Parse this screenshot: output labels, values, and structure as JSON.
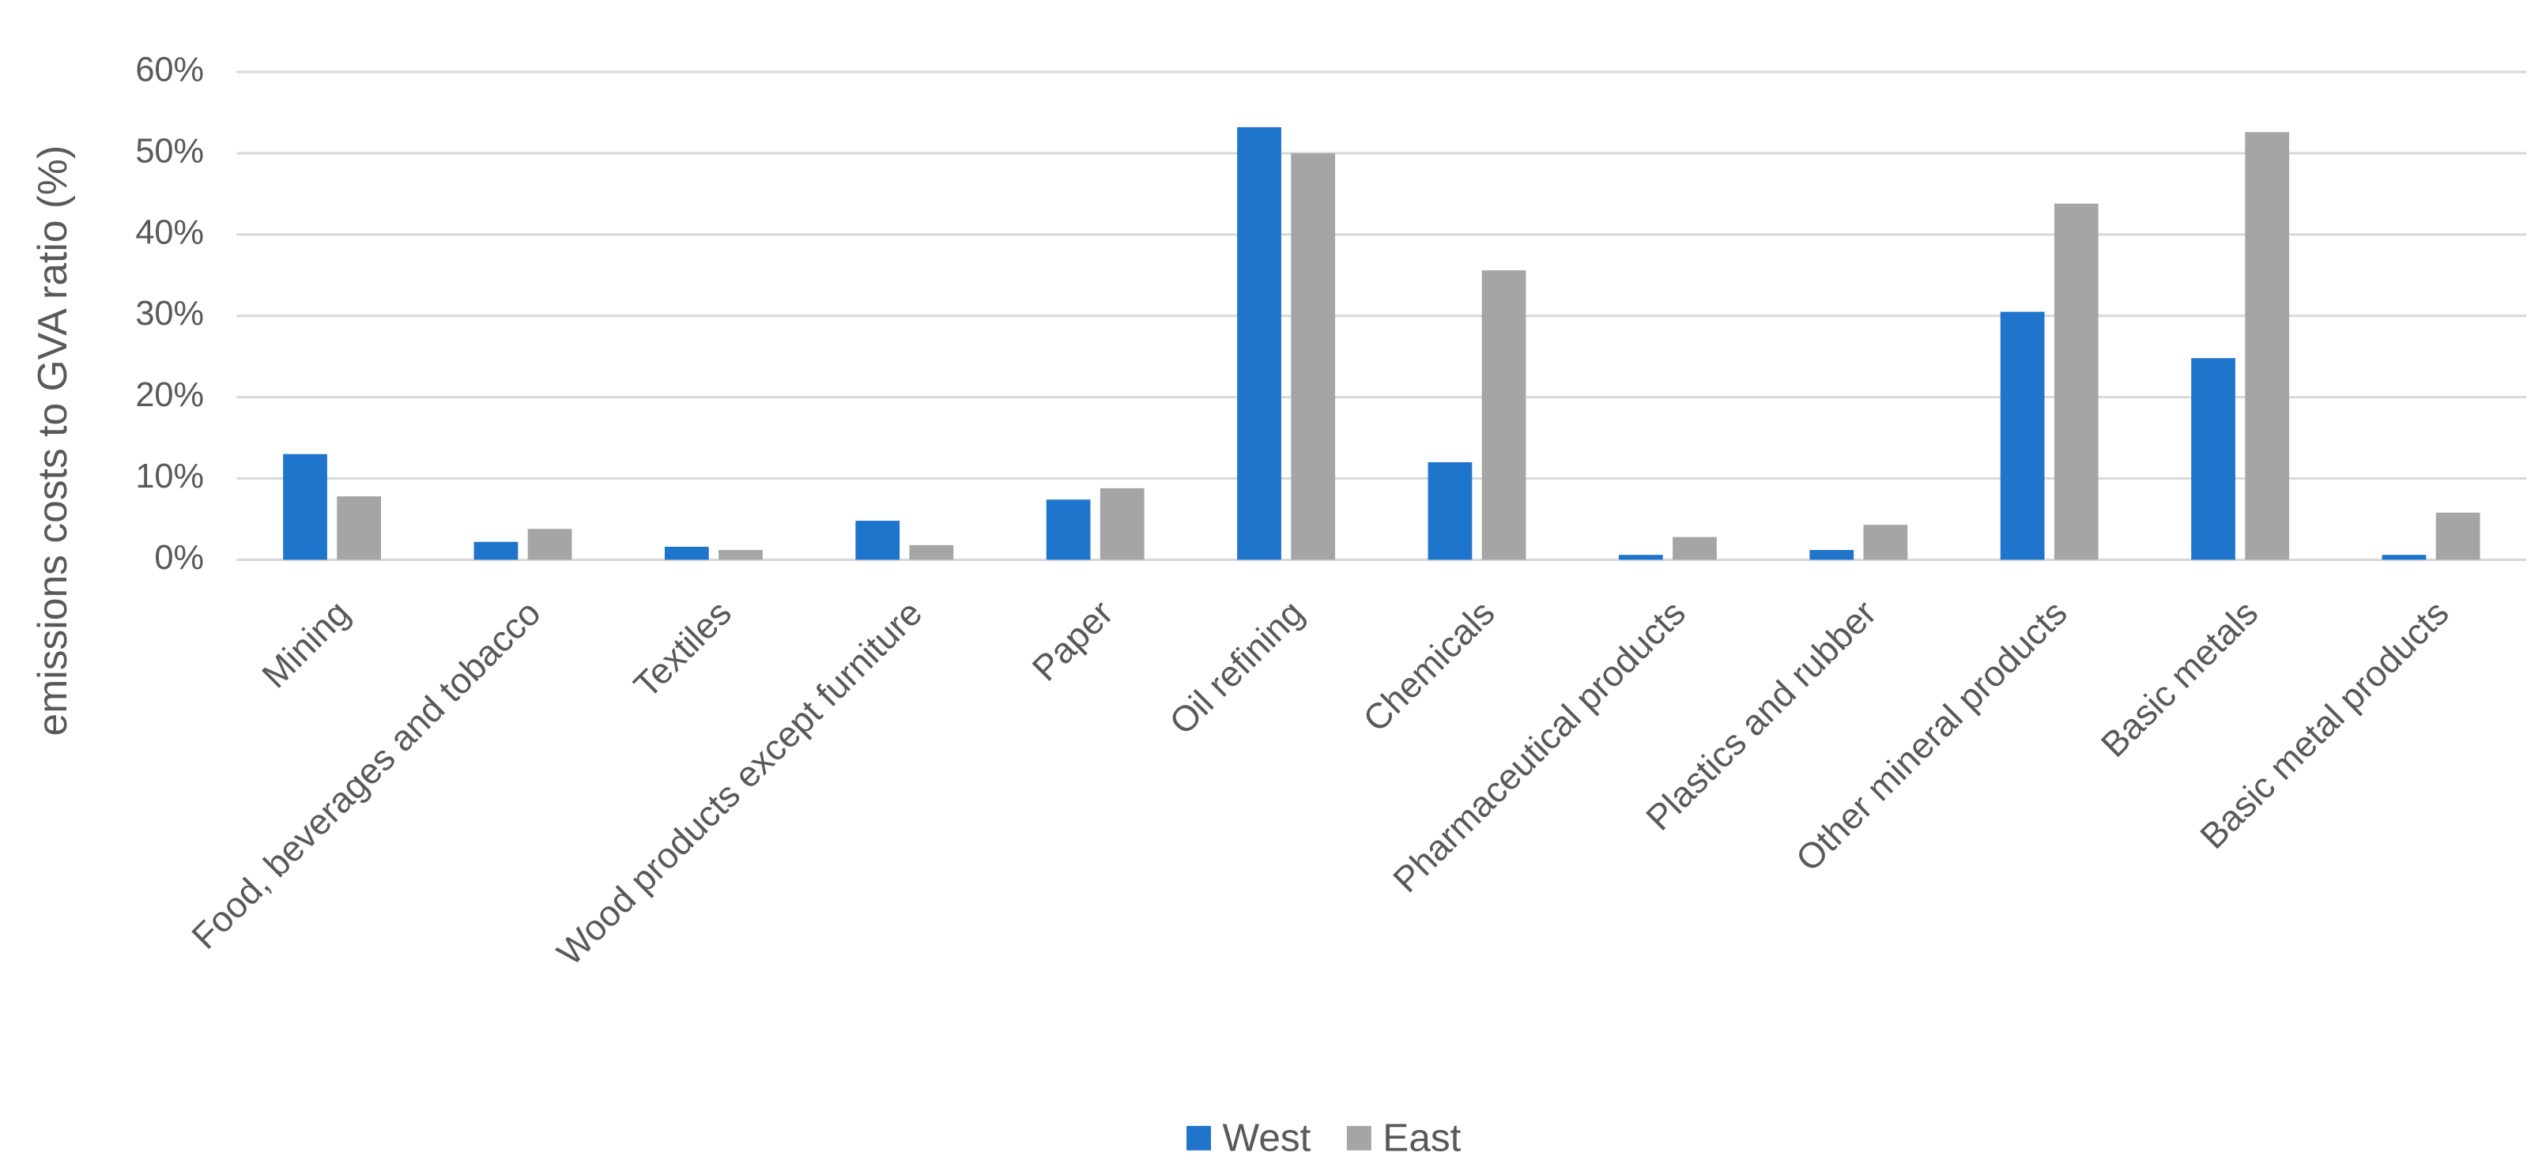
{
  "chart_data": {
    "type": "bar",
    "y_label": "emissions costs to GVA ratio (%)",
    "categories": [
      "Mining",
      "Food, beverages and tobacco",
      "Textiles",
      "Wood products except furniture",
      "Paper",
      "Oil refining",
      "Chemicals",
      "Pharmaceutical products",
      "Plastics and rubber",
      "Other mineral products",
      "Basic metals",
      "Basic metal products"
    ],
    "series": [
      {
        "name": "West",
        "color": "#1f74cc",
        "values": [
          13,
          2.2,
          1.6,
          4.8,
          7.4,
          53.2,
          12,
          0.6,
          1.2,
          30.5,
          24.8,
          0.6
        ]
      },
      {
        "name": "East",
        "color": "#a5a5a5",
        "values": [
          7.8,
          3.8,
          1.2,
          1.8,
          8.8,
          50,
          35.6,
          2.8,
          4.3,
          43.8,
          52.6,
          5.8
        ]
      }
    ],
    "ylim": [
      0,
      60
    ],
    "yticks": [
      {
        "value": 0,
        "label": "0%"
      },
      {
        "value": 10,
        "label": "10%"
      },
      {
        "value": 20,
        "label": "20%"
      },
      {
        "value": 30,
        "label": "30%"
      },
      {
        "value": 40,
        "label": "40%"
      },
      {
        "value": 50,
        "label": "50%"
      },
      {
        "value": 60,
        "label": "60%"
      }
    ],
    "grid": true,
    "legend": "bottom"
  }
}
